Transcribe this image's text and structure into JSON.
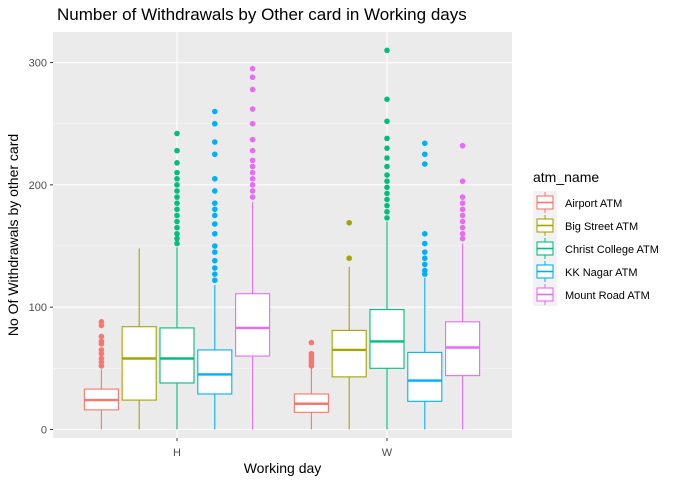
{
  "chart_data": {
    "type": "boxplot",
    "title": "Number of Withdrawals by Other card in Working days",
    "xlabel": "Working day",
    "ylabel": "No Of Withdrawals by other card",
    "categories": [
      "H",
      "W"
    ],
    "ylim": [
      -7,
      325
    ],
    "yticks": [
      0,
      100,
      200,
      300
    ],
    "grid": true,
    "legend": {
      "title": "atm_name",
      "position": "right"
    },
    "colors": {
      "panel": "#EBEBEB",
      "grid_major": "#FFFFFF",
      "axis_text": "#4D4D4D",
      "Airport ATM": "#F8766D",
      "Big Street ATM": "#A3A500",
      "Christ College ATM": "#00BF7D",
      "KK Nagar ATM": "#00B0F6",
      "Mount Road ATM": "#E76BF3"
    },
    "series": [
      {
        "name": "Airport ATM",
        "boxes": [
          {
            "category": "H",
            "min": 0,
            "q1": 16,
            "median": 24,
            "q3": 33,
            "max": 49,
            "outliers": [
              52,
              55,
              58,
              62,
              65,
              70,
              72,
              76,
              85,
              88
            ]
          },
          {
            "category": "W",
            "min": 0,
            "q1": 14,
            "median": 21,
            "q3": 29,
            "max": 50,
            "outliers": [
              52,
              54,
              56,
              58,
              60,
              62,
              71
            ]
          }
        ]
      },
      {
        "name": "Big Street ATM",
        "boxes": [
          {
            "category": "H",
            "min": 0,
            "q1": 24,
            "median": 58,
            "q3": 84,
            "max": 148,
            "outliers": []
          },
          {
            "category": "W",
            "min": 0,
            "q1": 43,
            "median": 65,
            "q3": 81,
            "max": 133,
            "outliers": [
              140,
              169
            ]
          }
        ]
      },
      {
        "name": "Christ College ATM",
        "boxes": [
          {
            "category": "H",
            "min": 0,
            "q1": 38,
            "median": 58,
            "q3": 83,
            "max": 149,
            "outliers": [
              152,
              156,
              160,
              165,
              170,
              175,
              180,
              185,
              190,
              195,
              200,
              205,
              210,
              218,
              228,
              242
            ]
          },
          {
            "category": "W",
            "min": 0,
            "q1": 50,
            "median": 72,
            "q3": 98,
            "max": 170,
            "outliers": [
              173,
              178,
              183,
              188,
              193,
              198,
              203,
              208,
              215,
              222,
              230,
              238,
              252,
              270,
              310
            ]
          }
        ]
      },
      {
        "name": "KK Nagar ATM",
        "boxes": [
          {
            "category": "H",
            "min": 0,
            "q1": 29,
            "median": 45,
            "q3": 65,
            "max": 118,
            "outliers": [
              122,
              127,
              132,
              138,
              145,
              150,
              160,
              168,
              175,
              180,
              185,
              195,
              205,
              225,
              235,
              250,
              260
            ]
          },
          {
            "category": "W",
            "min": 0,
            "q1": 23,
            "median": 40,
            "q3": 63,
            "max": 124,
            "outliers": [
              127,
              130,
              135,
              140,
              145,
              152,
              160,
              217,
              225,
              234
            ]
          }
        ]
      },
      {
        "name": "Mount Road ATM",
        "boxes": [
          {
            "category": "H",
            "min": 0,
            "q1": 60,
            "median": 83,
            "q3": 111,
            "max": 186,
            "outliers": [
              190,
              195,
              200,
              205,
              210,
              215,
              220,
              228,
              237,
              250,
              262,
              278,
              288,
              295
            ]
          },
          {
            "category": "W",
            "min": 0,
            "q1": 44,
            "median": 67,
            "q3": 88,
            "max": 152,
            "outliers": [
              156,
              160,
              165,
              170,
              175,
              180,
              185,
              190,
              203,
              232
            ]
          }
        ]
      }
    ]
  }
}
